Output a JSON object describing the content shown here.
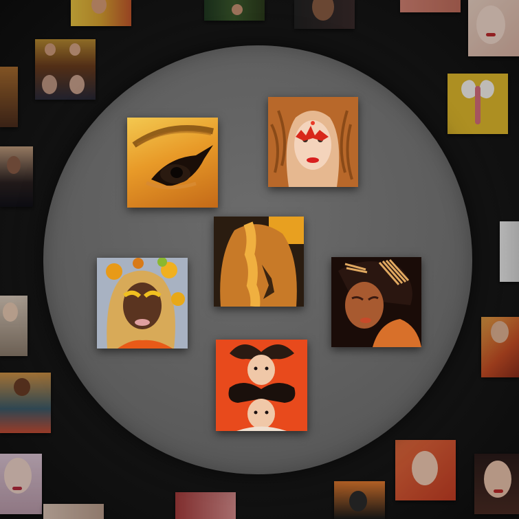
{
  "gallery": {
    "layout": "circular-spotlight-collage",
    "colors": {
      "background": "#0c0c0c",
      "spotlight": "#5f5f5f",
      "accent_orange": "#e87a1e",
      "accent_red": "#d8341f"
    },
    "featured_images": [
      {
        "subject": "golden-eyeshadow-closeup",
        "icon": "eye-makeup-photo"
      },
      {
        "subject": "red-face-gems-wavy-hair",
        "icon": "portrait-photo"
      },
      {
        "subject": "back-with-hand-shadow",
        "icon": "body-photo"
      },
      {
        "subject": "autumn-leaves-headpiece",
        "icon": "portrait-photo"
      },
      {
        "subject": "gold-hairpins-portrait",
        "icon": "portrait-photo"
      },
      {
        "subject": "mirrored-hair-buns",
        "icon": "portrait-photo"
      }
    ],
    "background_image_count": 22
  }
}
